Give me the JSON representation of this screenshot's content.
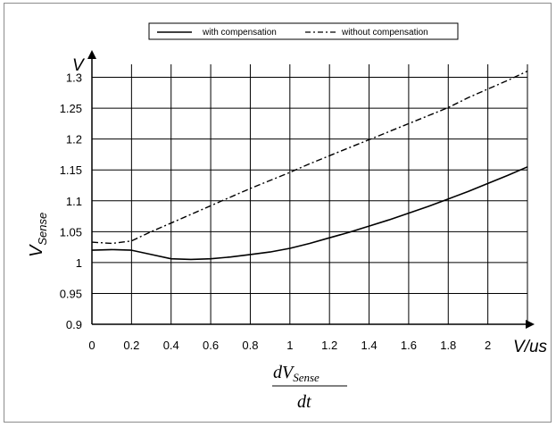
{
  "chart_data": {
    "type": "line",
    "legend": {
      "placement": "top-center",
      "entries": [
        "with compensation",
        "without compensation"
      ]
    },
    "xlim": [
      0,
      2.2
    ],
    "ylim": [
      0.9,
      1.35
    ],
    "x_ticks": [
      0,
      0.2,
      0.4,
      0.6,
      0.8,
      1,
      1.2,
      1.4,
      1.6,
      1.8,
      2
    ],
    "x_tick_labels": [
      "0",
      "0.2",
      "0.4",
      "0.6",
      "0.8",
      "1",
      "1.2",
      "1.4",
      "1.6",
      "1.8",
      "2"
    ],
    "y_ticks": [
      0.9,
      0.95,
      1,
      1.05,
      1.1,
      1.15,
      1.2,
      1.25,
      1.3
    ],
    "y_tick_labels": [
      "0.9",
      "0.95",
      "1",
      "1.05",
      "1.1",
      "1.15",
      "1.2",
      "1.25",
      "1.3"
    ],
    "x_unit": "V/us",
    "y_unit": "V",
    "ylabel": {
      "main": "V",
      "sub": "Sense"
    },
    "xlabel": {
      "numerator_d": "dV",
      "numerator_sub": "Sense",
      "denominator": "dt"
    },
    "grid": true,
    "series": [
      {
        "name": "with compensation",
        "style": "solid",
        "x": [
          0,
          0.1,
          0.2,
          0.3,
          0.4,
          0.5,
          0.6,
          0.7,
          0.8,
          0.9,
          1.0,
          1.1,
          1.2,
          1.3,
          1.4,
          1.5,
          1.6,
          1.7,
          1.8,
          1.9,
          2.0,
          2.1,
          2.2
        ],
        "y": [
          1.02,
          1.021,
          1.02,
          1.013,
          1.006,
          1.005,
          1.006,
          1.009,
          1.013,
          1.017,
          1.023,
          1.031,
          1.04,
          1.049,
          1.059,
          1.069,
          1.08,
          1.091,
          1.103,
          1.115,
          1.128,
          1.141,
          1.155
        ]
      },
      {
        "name": "without compensation",
        "style": "dash-dot",
        "x": [
          0,
          0.1,
          0.2,
          0.3,
          0.4,
          0.5,
          0.6,
          0.7,
          0.8,
          0.9,
          1.0,
          1.1,
          1.2,
          1.3,
          1.4,
          1.5,
          1.6,
          1.7,
          1.8,
          1.9,
          2.0,
          2.1,
          2.2
        ],
        "y": [
          1.033,
          1.031,
          1.035,
          1.05,
          1.064,
          1.078,
          1.092,
          1.106,
          1.12,
          1.133,
          1.146,
          1.16,
          1.173,
          1.186,
          1.199,
          1.212,
          1.225,
          1.238,
          1.251,
          1.267,
          1.281,
          1.295,
          1.31
        ]
      }
    ]
  }
}
